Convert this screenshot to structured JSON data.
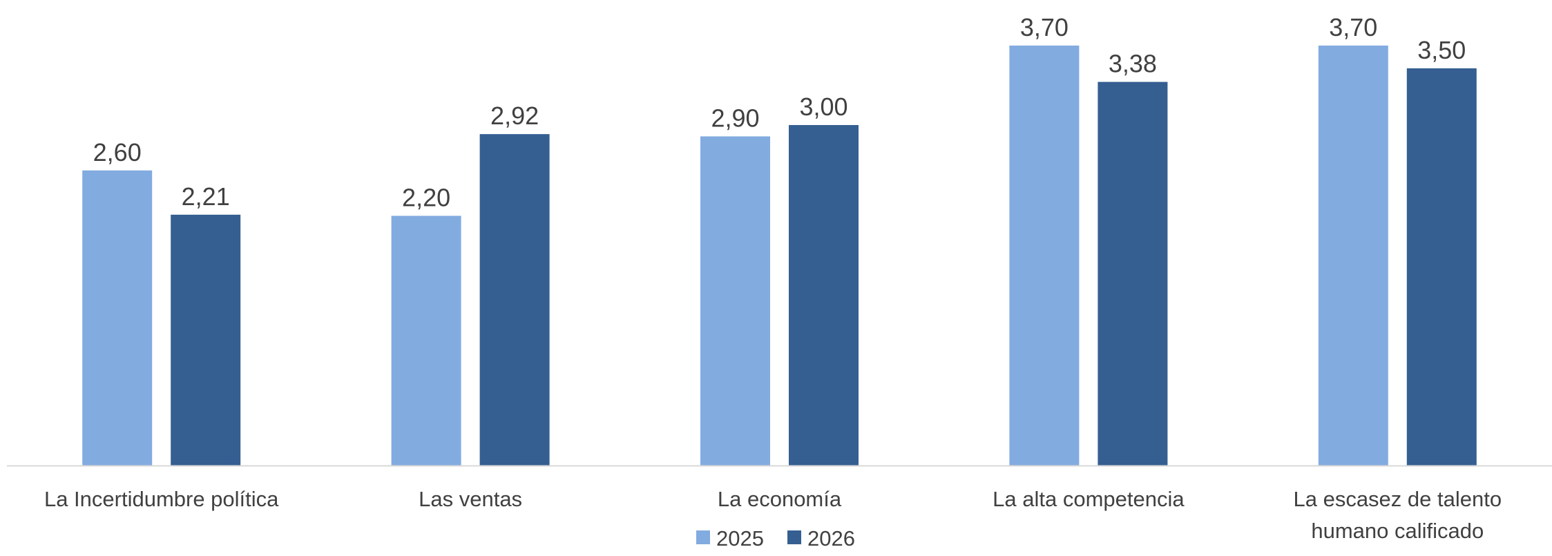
{
  "chart_data": {
    "type": "bar",
    "categories": [
      [
        "La Incertidumbre política"
      ],
      [
        "Las ventas"
      ],
      [
        "La economía"
      ],
      [
        "La alta competencia"
      ],
      [
        "La escasez de talento",
        "humano calificado"
      ]
    ],
    "series": [
      {
        "name": "2025",
        "color": "#82ABE0",
        "values": [
          2.6,
          2.2,
          2.9,
          3.7,
          3.7
        ],
        "labels": [
          "2,60",
          "2,20",
          "2,90",
          "3,70",
          "3,70"
        ]
      },
      {
        "name": "2026",
        "color": "#355F91",
        "values": [
          2.21,
          2.92,
          3.0,
          3.38,
          3.5
        ],
        "labels": [
          "2,21",
          "2,92",
          "3,00",
          "3,38",
          "3,50"
        ]
      }
    ],
    "ylim": [
      0,
      3.7
    ],
    "legend_position": "bottom",
    "grid": false,
    "axis_color": "#D9D9D9"
  }
}
